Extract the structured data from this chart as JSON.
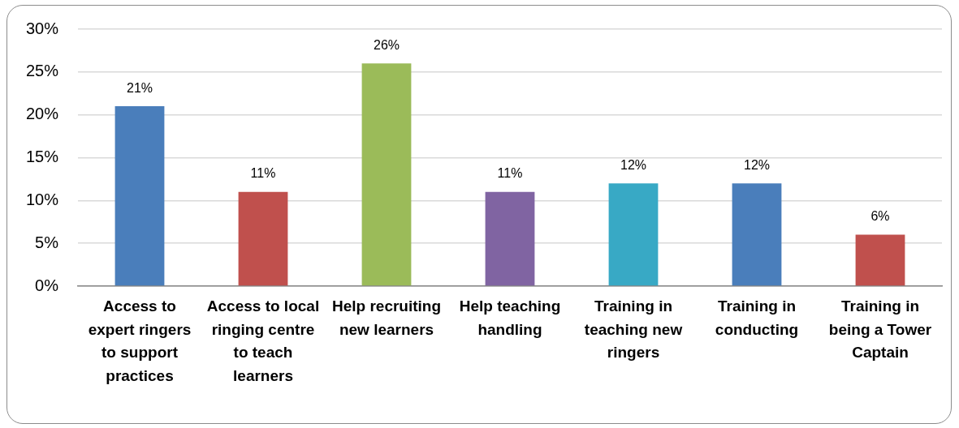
{
  "chart_data": {
    "type": "bar",
    "categories": [
      "Access to expert ringers to support practices",
      "Access to local ringing centre to teach learners",
      "Help recruiting new learners",
      "Help teaching handling",
      "Training in teaching new ringers",
      "Training in conducting",
      "Training in being a Tower Captain"
    ],
    "values": [
      21,
      11,
      26,
      11,
      12,
      12,
      6
    ],
    "colors": [
      "#4a7ebb",
      "#c0504d",
      "#9bbb59",
      "#8064a2",
      "#38a9c5",
      "#4a7ebb",
      "#c0504d"
    ],
    "value_labels": [
      "21%",
      "11%",
      "26%",
      "11%",
      "12%",
      "12%",
      "6%"
    ],
    "ylim": [
      0,
      30
    ],
    "yticks": [
      {
        "value": 0,
        "label": "0%"
      },
      {
        "value": 5,
        "label": "5%"
      },
      {
        "value": 10,
        "label": "10%"
      },
      {
        "value": 15,
        "label": "15%"
      },
      {
        "value": 20,
        "label": "20%"
      },
      {
        "value": 25,
        "label": "25%"
      },
      {
        "value": 30,
        "label": "30%"
      }
    ],
    "grid": "y"
  }
}
